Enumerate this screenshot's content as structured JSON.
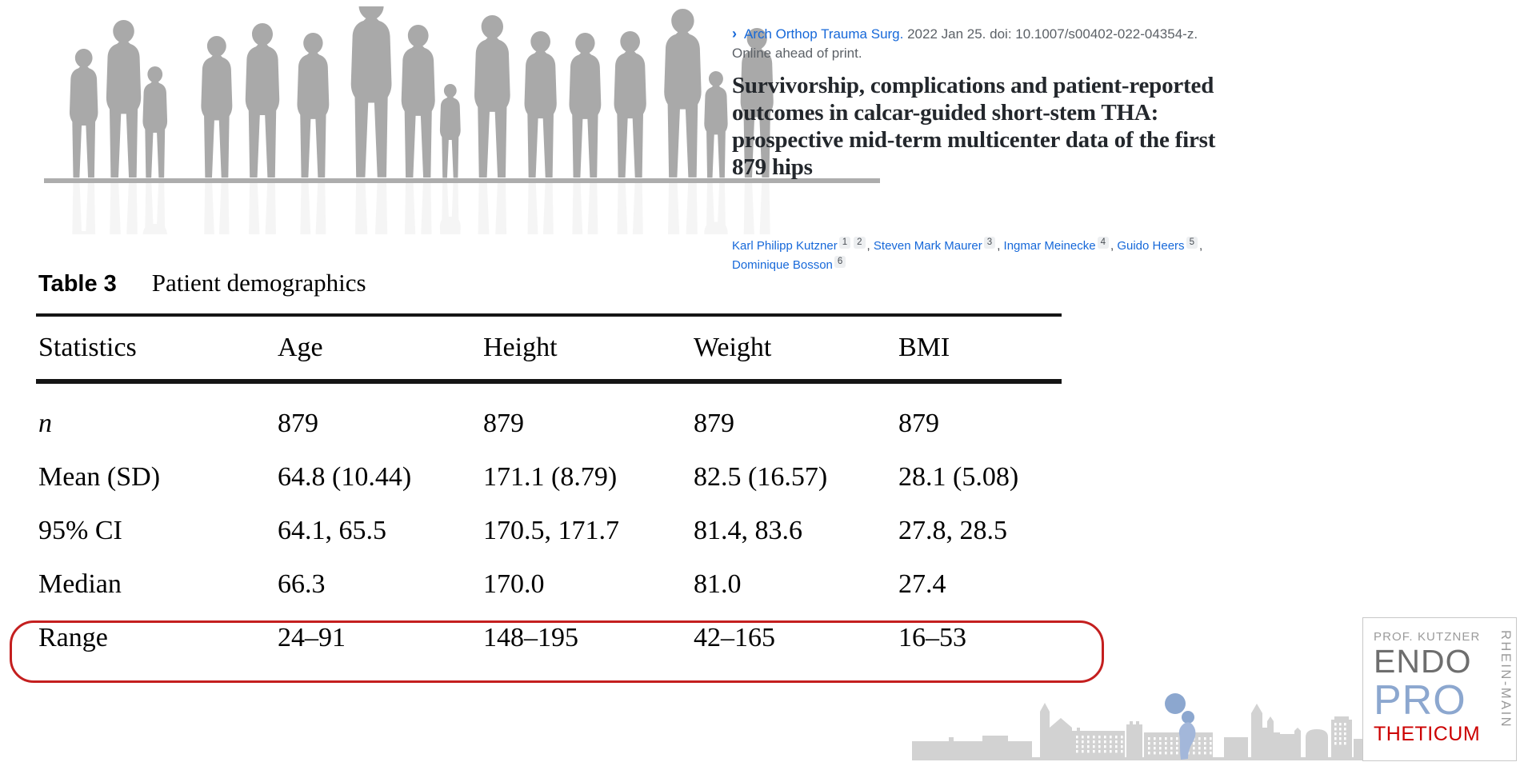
{
  "citation": {
    "chevron": "›",
    "journal": "Arch Orthop Trauma Surg.",
    "rest": " 2022 Jan 25. doi: 10.1007/s00402-022-04354-z.",
    "online_ahead": "Online ahead of print."
  },
  "paper": {
    "title": "Survivorship, complications and patient-reported outcomes in calcar-guided short-stem THA: prospective mid-term multicenter data of the first 879 hips",
    "authors": [
      {
        "name": "Karl Philipp Kutzner",
        "affiliations": [
          "1",
          "2"
        ]
      },
      {
        "name": "Steven Mark Maurer",
        "affiliations": [
          "3"
        ]
      },
      {
        "name": "Ingmar Meinecke",
        "affiliations": [
          "4"
        ]
      },
      {
        "name": "Guido Heers",
        "affiliations": [
          "5"
        ]
      },
      {
        "name": "Dominique Bosson",
        "affiliations": [
          "6"
        ]
      }
    ]
  },
  "table": {
    "caption_label": "Table 3",
    "caption_title": "Patient demographics",
    "headers": [
      "Statistics",
      "Age",
      "Height",
      "Weight",
      "BMI"
    ],
    "rows": [
      {
        "label": "n",
        "italic": true,
        "highlighted": false,
        "values": [
          "879",
          "879",
          "879",
          "879"
        ]
      },
      {
        "label": "Mean (SD)",
        "italic": false,
        "highlighted": false,
        "values": [
          "64.8 (10.44)",
          "171.1 (8.79)",
          "82.5 (16.57)",
          "28.1 (5.08)"
        ]
      },
      {
        "label": "95% CI",
        "italic": false,
        "highlighted": false,
        "values": [
          "64.1, 65.5",
          "170.5, 171.7",
          "81.4, 83.6",
          "27.8, 28.5"
        ]
      },
      {
        "label": "Median",
        "italic": false,
        "highlighted": false,
        "values": [
          "66.3",
          "170.0",
          "81.0",
          "27.4"
        ]
      },
      {
        "label": "Range",
        "italic": false,
        "highlighted": true,
        "values": [
          "24–91",
          "148–195",
          "42–165",
          "16–53"
        ]
      }
    ]
  },
  "annotation": {
    "shape": "red-rounded-rectangle",
    "around_row": "Range",
    "color": "#c41f1f"
  },
  "logo": {
    "line1": "PROF. KUTZNER",
    "line2": "ENDO",
    "line3": "PRO",
    "line4": "THETICUM",
    "vertical": "RHEIN-MAIN",
    "colors": {
      "line1": "#9b9b9b",
      "line2": "#6e6e6e",
      "line3": "#8ca7cf",
      "line4": "#cc0000",
      "vertical": "#9b9b9b"
    }
  },
  "hero_image": {
    "description": "row of gray people silhouettes of varying heights with floor reflection",
    "person_color": "#a9a9a9",
    "ground_color": "#adadad",
    "people_x": [
      28,
      73,
      120,
      192,
      247,
      312,
      378,
      442,
      492,
      533,
      596,
      652,
      708,
      770,
      822,
      866
    ],
    "people_heights": [
      162,
      198,
      140,
      178,
      194,
      182,
      232,
      192,
      118,
      204,
      184,
      182,
      184,
      212,
      134,
      188
    ]
  },
  "footer_image": {
    "description": "light gray city skyline of Mainz with blue short-stem hip implant",
    "skyline_color": "#d2d2d2",
    "implant_color": "#8ca7cf",
    "implant_stem_color": "#a3b7da"
  },
  "colors": {
    "link_blue": "#1668d9",
    "annotation_red": "#c41f1f",
    "text_gray": "#5c6167"
  }
}
